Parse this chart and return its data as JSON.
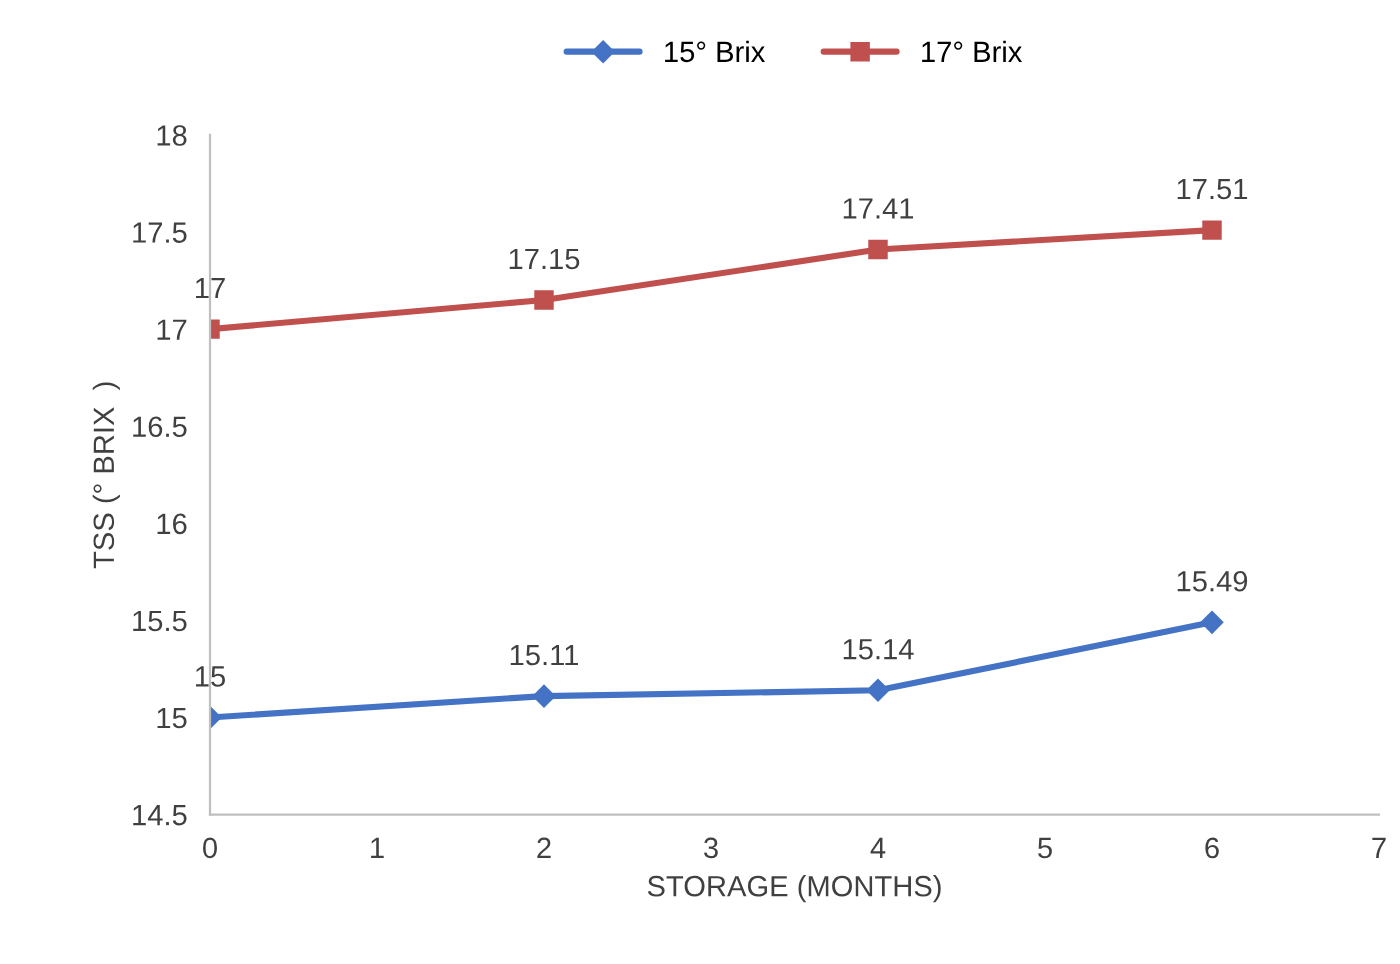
{
  "chart_data": {
    "type": "line",
    "xlabel": "STORAGE (MONTHS)",
    "ylabel": "TSS (° BRIX  )",
    "x": [
      0,
      2,
      4,
      6
    ],
    "series": [
      {
        "name": "15° Brix",
        "color": "#4472c4",
        "marker": "diamond",
        "values": [
          15,
          15.11,
          15.14,
          15.49
        ]
      },
      {
        "name": "17° Brix",
        "color": "#c0504d",
        "marker": "square",
        "values": [
          17,
          17.15,
          17.41,
          17.51
        ]
      }
    ],
    "xlim": [
      0,
      7
    ],
    "xticks": [
      0,
      1,
      2,
      3,
      4,
      5,
      6,
      7
    ],
    "ylim": [
      14.5,
      18
    ],
    "yticks": [
      14.5,
      15,
      15.5,
      16,
      16.5,
      17,
      17.5,
      18
    ],
    "grid": false,
    "legend": "top",
    "data_labels": true,
    "line_style": "solid"
  }
}
